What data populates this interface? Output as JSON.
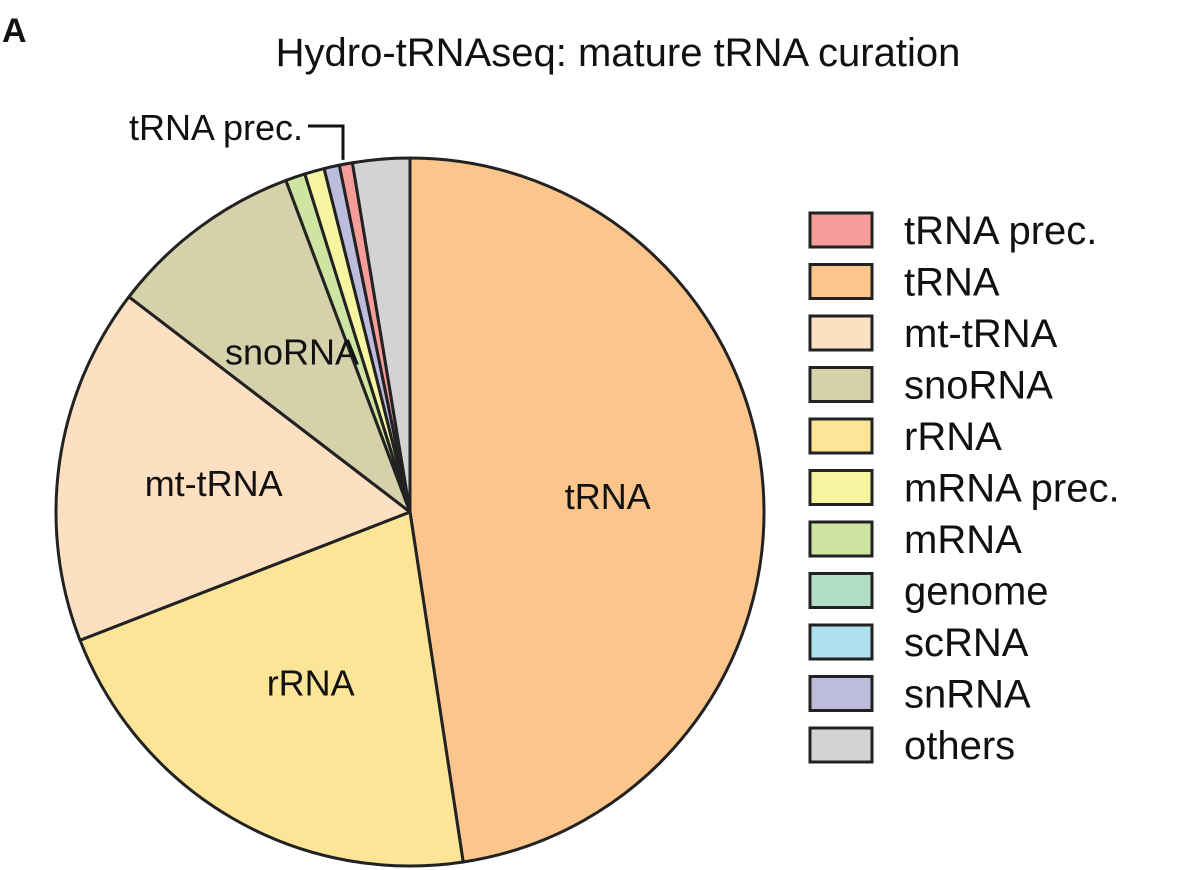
{
  "panel_label": "A",
  "chart_data": {
    "type": "pie",
    "title": "Hydro-tRNAseq: mature tRNA curation",
    "start": "12 o'clock",
    "direction": "clockwise",
    "slices": [
      {
        "name": "tRNA",
        "legend": "tRNA",
        "value": 47.6,
        "color": "#FBC58C",
        "label": "tRNA"
      },
      {
        "name": "rRNA",
        "legend": "rRNA",
        "value": 21.5,
        "color": "#FCE597",
        "label": "rRNA"
      },
      {
        "name": "mt-tRNA",
        "legend": "mt-tRNA",
        "value": 16.3,
        "color": "#FDDFC1",
        "label": "mt-tRNA"
      },
      {
        "name": "snoRNA",
        "legend": "snoRNA",
        "value": 8.9,
        "color": "#D5D1AA",
        "label": "snoRNA"
      },
      {
        "name": "mRNA",
        "legend": "mRNA",
        "value": 0.9,
        "color": "#CDE5A1",
        "label": ""
      },
      {
        "name": "mRNA prec.",
        "legend": "mRNA prec.",
        "value": 0.9,
        "color": "#F8F5A2",
        "label": ""
      },
      {
        "name": "snRNA",
        "legend": "snRNA",
        "value": 0.7,
        "color": "#BDBCDD",
        "label": ""
      },
      {
        "name": "tRNA prec.",
        "legend": "tRNA prec.",
        "value": 0.6,
        "color": "#F59D98",
        "label": ""
      },
      {
        "name": "others",
        "legend": "others",
        "value": 2.6,
        "color": "#D3D3D3",
        "label": ""
      }
    ],
    "legend": {
      "position": "right",
      "entries": [
        {
          "label": "tRNA prec.",
          "color": "#F59D98"
        },
        {
          "label": "tRNA",
          "color": "#FBC58C"
        },
        {
          "label": "mt-tRNA",
          "color": "#FDDFC1"
        },
        {
          "label": "snoRNA",
          "color": "#D5D1AA"
        },
        {
          "label": "rRNA",
          "color": "#FCE597"
        },
        {
          "label": "mRNA prec.",
          "color": "#F8F5A2"
        },
        {
          "label": "mRNA",
          "color": "#CDE5A1"
        },
        {
          "label": "genome",
          "color": "#B3DEC6"
        },
        {
          "label": "scRNA",
          "color": "#ACE0EC"
        },
        {
          "label": "snRNA",
          "color": "#BDBCDD"
        },
        {
          "label": "others",
          "color": "#D3D3D3"
        }
      ]
    },
    "callout": {
      "text": "tRNA prec.",
      "slice": "tRNA prec."
    }
  }
}
